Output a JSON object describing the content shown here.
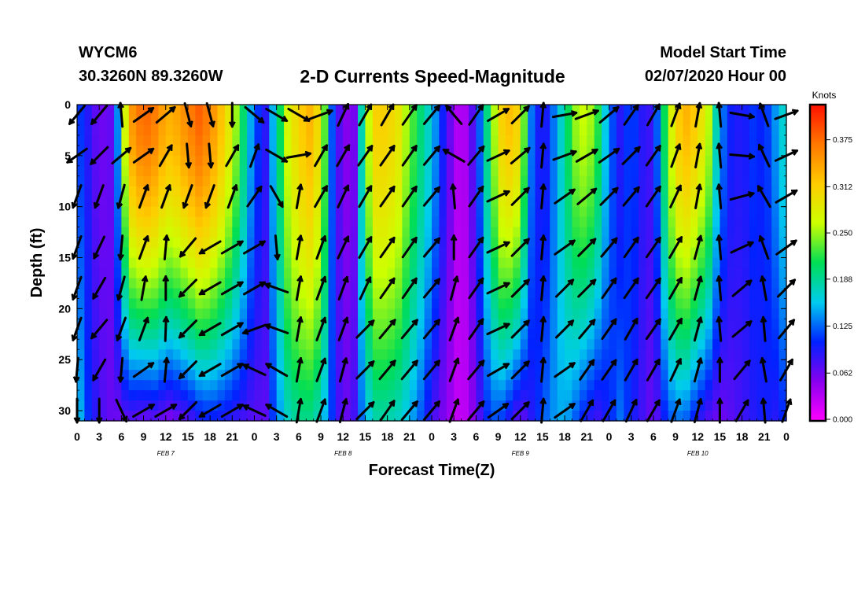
{
  "header": {
    "station_id": "WYCM6",
    "coords": "30.3260N 89.3260W",
    "title": "2-D Currents Speed-Magnitude",
    "model_start_label": "Model Start Time",
    "model_start_value": "02/07/2020 Hour 00"
  },
  "chart_data": {
    "type": "heatmap",
    "title": "2-D Currents Speed-Magnitude",
    "xlabel": "Forecast Time(Z)",
    "ylabel": "Depth (ft)",
    "x_tick_labels": [
      "0",
      "3",
      "6",
      "9",
      "12",
      "15",
      "18",
      "21",
      "0",
      "3",
      "6",
      "9",
      "12",
      "15",
      "18",
      "21",
      "0",
      "3",
      "6",
      "9",
      "12",
      "15",
      "18",
      "21",
      "0",
      "3",
      "6",
      "9",
      "12",
      "15",
      "18",
      "21",
      "0"
    ],
    "x_range_hours": [
      0,
      96
    ],
    "date_labels": [
      {
        "label": "FEB 7",
        "hour": 12
      },
      {
        "label": "FEB 8",
        "hour": 36
      },
      {
        "label": "FEB 9",
        "hour": 60
      },
      {
        "label": "FEB 10",
        "hour": 84
      }
    ],
    "y_tick_labels": [
      "0",
      "5",
      "10",
      "15",
      "20",
      "25",
      "30"
    ],
    "y_range_ft": [
      0,
      31
    ],
    "y_inverted": true,
    "colorbar": {
      "unit_label": "Knots",
      "tick_labels": [
        "0.000",
        "0.062",
        "0.125",
        "0.188",
        "0.250",
        "0.312",
        "0.375"
      ],
      "range": [
        0,
        0.42
      ],
      "colors": [
        "#ff00ff",
        "#8800ee",
        "#0022ff",
        "#00ccee",
        "#00dd55",
        "#ccff00",
        "#ffcc00",
        "#ff7700",
        "#ff1100"
      ]
    },
    "speed_profile": {
      "hours": [
        0,
        1.5,
        3,
        5,
        7,
        9,
        11,
        12,
        13.5,
        15,
        16.5,
        18,
        20,
        22,
        24,
        25.5,
        27,
        28.5,
        30,
        31.5,
        33,
        34.5,
        36,
        37.5,
        39,
        40.5,
        42,
        43.5,
        45,
        46.5,
        48,
        50,
        52,
        54,
        56,
        57.5,
        59,
        60,
        61.5,
        63,
        64.5,
        66,
        67.5,
        69,
        70.5,
        72,
        73.5,
        75,
        76.5,
        78,
        79.5,
        81,
        82.5,
        84,
        85.5,
        87,
        88.5,
        90,
        91.5,
        93,
        94.5,
        96
      ],
      "surface_kn": [
        0.12,
        0.09,
        0.06,
        0.07,
        0.34,
        0.38,
        0.36,
        0.33,
        0.34,
        0.36,
        0.38,
        0.36,
        0.31,
        0.23,
        0.12,
        0.09,
        0.18,
        0.27,
        0.31,
        0.33,
        0.29,
        0.12,
        0.05,
        0.06,
        0.24,
        0.31,
        0.31,
        0.29,
        0.24,
        0.2,
        0.16,
        0.08,
        0.02,
        0.09,
        0.23,
        0.31,
        0.33,
        0.29,
        0.13,
        0.08,
        0.13,
        0.19,
        0.25,
        0.27,
        0.22,
        0.13,
        0.09,
        0.12,
        0.09,
        0.08,
        0.21,
        0.31,
        0.33,
        0.31,
        0.26,
        0.14,
        0.1,
        0.09,
        0.11,
        0.1,
        0.14,
        0.18
      ],
      "bottom_kn": [
        0.17,
        0.11,
        0.08,
        0.06,
        0.07,
        0.06,
        0.07,
        0.05,
        0.06,
        0.07,
        0.09,
        0.1,
        0.09,
        0.08,
        0.07,
        0.07,
        0.13,
        0.17,
        0.19,
        0.19,
        0.17,
        0.11,
        0.06,
        0.08,
        0.15,
        0.18,
        0.18,
        0.17,
        0.15,
        0.12,
        0.08,
        0.05,
        0.02,
        0.06,
        0.12,
        0.11,
        0.08,
        0.06,
        0.09,
        0.12,
        0.14,
        0.15,
        0.12,
        0.09,
        0.08,
        0.1,
        0.13,
        0.1,
        0.08,
        0.06,
        0.1,
        0.13,
        0.12,
        0.09,
        0.07,
        0.06,
        0.07,
        0.08,
        0.09,
        0.1,
        0.09,
        0.11
      ]
    },
    "vectors": {
      "note_units": "direction in degrees (0=east, 90=north, compass counter-clockwise)",
      "hours": [
        0,
        3,
        6,
        9,
        12,
        15,
        18,
        21,
        24,
        27,
        30,
        33,
        36,
        39,
        42,
        45,
        48,
        51,
        54,
        57,
        60,
        63,
        66,
        69,
        72,
        75,
        78,
        81,
        84,
        87,
        90,
        93,
        96
      ],
      "depths_ft": [
        1,
        5,
        9,
        14,
        18,
        22,
        26,
        30
      ],
      "angles_by_column": [
        [
          230,
          215,
          250,
          250,
          250,
          250,
          265,
          270
        ],
        [
          230,
          225,
          250,
          245,
          240,
          230,
          240,
          270
        ],
        [
          95,
          40,
          255,
          265,
          255,
          250,
          265,
          295
        ],
        [
          35,
          35,
          70,
          70,
          80,
          70,
          35,
          30
        ],
        [
          40,
          60,
          70,
          85,
          90,
          88,
          85,
          30
        ],
        [
          285,
          275,
          250,
          230,
          225,
          225,
          225,
          225
        ],
        [
          285,
          275,
          250,
          210,
          210,
          210,
          210,
          210
        ],
        [
          270,
          60,
          70,
          30,
          30,
          30,
          30,
          30
        ],
        [
          320,
          70,
          55,
          30,
          30,
          200,
          155,
          155
        ],
        [
          330,
          330,
          300,
          275,
          160,
          160,
          150,
          150
        ],
        [
          330,
          10,
          80,
          80,
          80,
          80,
          80,
          80
        ],
        [
          20,
          60,
          60,
          70,
          70,
          70,
          70,
          70
        ],
        [
          65,
          60,
          65,
          65,
          70,
          70,
          75,
          75
        ],
        [
          60,
          55,
          60,
          60,
          65,
          45,
          45,
          45
        ],
        [
          60,
          55,
          55,
          55,
          55,
          50,
          50,
          55
        ],
        [
          55,
          55,
          55,
          55,
          55,
          50,
          50,
          50
        ],
        [
          50,
          50,
          50,
          50,
          50,
          50,
          50,
          50
        ],
        [
          130,
          150,
          95,
          90,
          75,
          70,
          70,
          70
        ],
        [
          55,
          50,
          55,
          55,
          55,
          55,
          50,
          50
        ],
        [
          30,
          25,
          25,
          25,
          25,
          25,
          30,
          35
        ],
        [
          45,
          40,
          45,
          45,
          45,
          45,
          45,
          45
        ],
        [
          85,
          85,
          85,
          85,
          85,
          85,
          85,
          85
        ],
        [
          10,
          20,
          35,
          35,
          45,
          45,
          35,
          35
        ],
        [
          20,
          30,
          40,
          45,
          45,
          50,
          55,
          60
        ],
        [
          40,
          35,
          45,
          50,
          55,
          55,
          55,
          60
        ],
        [
          55,
          45,
          50,
          55,
          55,
          60,
          60,
          65
        ],
        [
          60,
          55,
          55,
          55,
          55,
          55,
          60,
          60
        ],
        [
          70,
          70,
          65,
          60,
          60,
          60,
          65,
          70
        ],
        [
          80,
          80,
          80,
          75,
          75,
          75,
          75,
          75
        ],
        [
          95,
          95,
          95,
          95,
          95,
          95,
          90,
          90
        ],
        [
          350,
          355,
          15,
          25,
          40,
          40,
          50,
          60
        ],
        [
          110,
          115,
          120,
          110,
          100,
          95,
          100,
          95
        ],
        [
          20,
          25,
          30,
          35,
          45,
          50,
          60,
          70
        ]
      ]
    }
  }
}
